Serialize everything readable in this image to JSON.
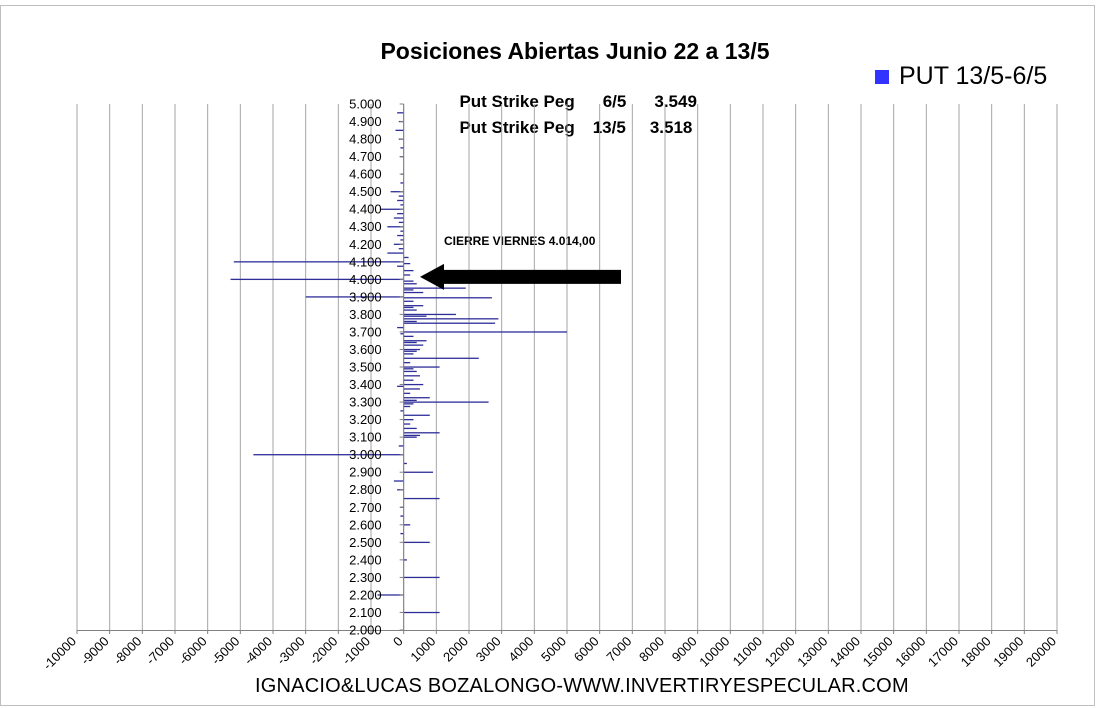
{
  "chart_data": {
    "type": "bar",
    "orientation": "horizontal",
    "title": "Posiciones Abiertas Junio 22 a 13/5",
    "subtitle_lines": [
      {
        "label": "Put Strike Peg",
        "date": "6/5",
        "value": "3.549"
      },
      {
        "label": "Put Strike Peg",
        "date": "13/5",
        "value": "3.518"
      }
    ],
    "legend": {
      "label": "PUT 13/5-6/5",
      "position": "top-right",
      "color": "#3333ff"
    },
    "annotation": {
      "text": "CIERRE VIERNES 4.014,00",
      "points_to": 4014
    },
    "footer": "IGNACIO&LUCAS BOZALONGO-WWW.INVERTIRYESPECULAR.COM",
    "xlim": [
      -10000,
      20000
    ],
    "x_ticks": [
      -10000,
      -9000,
      -8000,
      -7000,
      -6000,
      -5000,
      -4000,
      -3000,
      -2000,
      -1000,
      0,
      1000,
      2000,
      3000,
      4000,
      5000,
      6000,
      7000,
      8000,
      9000,
      10000,
      11000,
      12000,
      13000,
      14000,
      15000,
      16000,
      17000,
      18000,
      19000,
      20000
    ],
    "ylim": [
      2000,
      5000
    ],
    "y_ticks": [
      "5.000",
      "4.900",
      "4.800",
      "4.700",
      "4.600",
      "4.500",
      "4.400",
      "4.300",
      "4.200",
      "4.100",
      "4.000",
      "3.900",
      "3.800",
      "3.700",
      "3.600",
      "3.500",
      "3.400",
      "3.300",
      "3.200",
      "3.100",
      "3.000",
      "2.900",
      "2.800",
      "2.700",
      "2.600",
      "2.500",
      "2.400",
      "2.300",
      "2.200",
      "2.100",
      "2.000"
    ],
    "grid": "vertical",
    "bar_color": "#2e2e99",
    "series": [
      {
        "name": "PUT 13/5-6/5",
        "points": [
          {
            "strike": 4950,
            "value": -200
          },
          {
            "strike": 4900,
            "value": -150
          },
          {
            "strike": 4850,
            "value": -250
          },
          {
            "strike": 4800,
            "value": -150
          },
          {
            "strike": 4750,
            "value": -100
          },
          {
            "strike": 4700,
            "value": -120
          },
          {
            "strike": 4600,
            "value": -80
          },
          {
            "strike": 4550,
            "value": -100
          },
          {
            "strike": 4500,
            "value": -400
          },
          {
            "strike": 4475,
            "value": -150
          },
          {
            "strike": 4450,
            "value": -200
          },
          {
            "strike": 4425,
            "value": -100
          },
          {
            "strike": 4400,
            "value": -700
          },
          {
            "strike": 4375,
            "value": -200
          },
          {
            "strike": 4350,
            "value": -300
          },
          {
            "strike": 4325,
            "value": -150
          },
          {
            "strike": 4300,
            "value": -500
          },
          {
            "strike": 4275,
            "value": -100
          },
          {
            "strike": 4250,
            "value": -200
          },
          {
            "strike": 4225,
            "value": -100
          },
          {
            "strike": 4200,
            "value": -300
          },
          {
            "strike": 4175,
            "value": -150
          },
          {
            "strike": 4150,
            "value": -500
          },
          {
            "strike": 4125,
            "value": 150
          },
          {
            "strike": 4100,
            "value": -5200
          },
          {
            "strike": 4090,
            "value": 200
          },
          {
            "strike": 4075,
            "value": -200
          },
          {
            "strike": 4050,
            "value": 300
          },
          {
            "strike": 4025,
            "value": 200
          },
          {
            "strike": 4000,
            "value": -5300
          },
          {
            "strike": 3990,
            "value": 300
          },
          {
            "strike": 3975,
            "value": 400
          },
          {
            "strike": 3950,
            "value": 1900
          },
          {
            "strike": 3940,
            "value": 300
          },
          {
            "strike": 3925,
            "value": 600
          },
          {
            "strike": 3900,
            "value": -3000
          },
          {
            "strike": 3895,
            "value": 2700
          },
          {
            "strike": 3875,
            "value": 300
          },
          {
            "strike": 3850,
            "value": 600
          },
          {
            "strike": 3840,
            "value": 300
          },
          {
            "strike": 3825,
            "value": 400
          },
          {
            "strike": 3800,
            "value": 1600
          },
          {
            "strike": 3790,
            "value": 700
          },
          {
            "strike": 3775,
            "value": 2900
          },
          {
            "strike": 3760,
            "value": 400
          },
          {
            "strike": 3750,
            "value": 2800
          },
          {
            "strike": 3725,
            "value": -200
          },
          {
            "strike": 3700,
            "value": 5000
          },
          {
            "strike": 3690,
            "value": -100
          },
          {
            "strike": 3675,
            "value": 300
          },
          {
            "strike": 3650,
            "value": 700
          },
          {
            "strike": 3640,
            "value": 400
          },
          {
            "strike": 3625,
            "value": 600
          },
          {
            "strike": 3600,
            "value": 500
          },
          {
            "strike": 3590,
            "value": 400
          },
          {
            "strike": 3575,
            "value": 300
          },
          {
            "strike": 3550,
            "value": 2300
          },
          {
            "strike": 3525,
            "value": 200
          },
          {
            "strike": 3500,
            "value": 1100
          },
          {
            "strike": 3490,
            "value": 300
          },
          {
            "strike": 3475,
            "value": 400
          },
          {
            "strike": 3450,
            "value": 500
          },
          {
            "strike": 3425,
            "value": 300
          },
          {
            "strike": 3400,
            "value": 600
          },
          {
            "strike": 3390,
            "value": -200
          },
          {
            "strike": 3375,
            "value": 500
          },
          {
            "strike": 3350,
            "value": 200
          },
          {
            "strike": 3325,
            "value": 800
          },
          {
            "strike": 3310,
            "value": 400
          },
          {
            "strike": 3300,
            "value": 2600
          },
          {
            "strike": 3290,
            "value": 300
          },
          {
            "strike": 3275,
            "value": 200
          },
          {
            "strike": 3250,
            "value": -100
          },
          {
            "strike": 3225,
            "value": 800
          },
          {
            "strike": 3200,
            "value": 300
          },
          {
            "strike": 3175,
            "value": 200
          },
          {
            "strike": 3150,
            "value": 400
          },
          {
            "strike": 3125,
            "value": 1100
          },
          {
            "strike": 3110,
            "value": 500
          },
          {
            "strike": 3100,
            "value": 400
          },
          {
            "strike": 3050,
            "value": -150
          },
          {
            "strike": 3000,
            "value": -4600
          },
          {
            "strike": 2950,
            "value": 100
          },
          {
            "strike": 2900,
            "value": 900
          },
          {
            "strike": 2850,
            "value": -300
          },
          {
            "strike": 2800,
            "value": -200
          },
          {
            "strike": 2750,
            "value": 1100
          },
          {
            "strike": 2700,
            "value": -100
          },
          {
            "strike": 2650,
            "value": -100
          },
          {
            "strike": 2600,
            "value": 200
          },
          {
            "strike": 2550,
            "value": -100
          },
          {
            "strike": 2500,
            "value": 800
          },
          {
            "strike": 2400,
            "value": 100
          },
          {
            "strike": 2300,
            "value": 1100
          },
          {
            "strike": 2200,
            "value": -800
          },
          {
            "strike": 2100,
            "value": 1100
          }
        ]
      }
    ]
  }
}
